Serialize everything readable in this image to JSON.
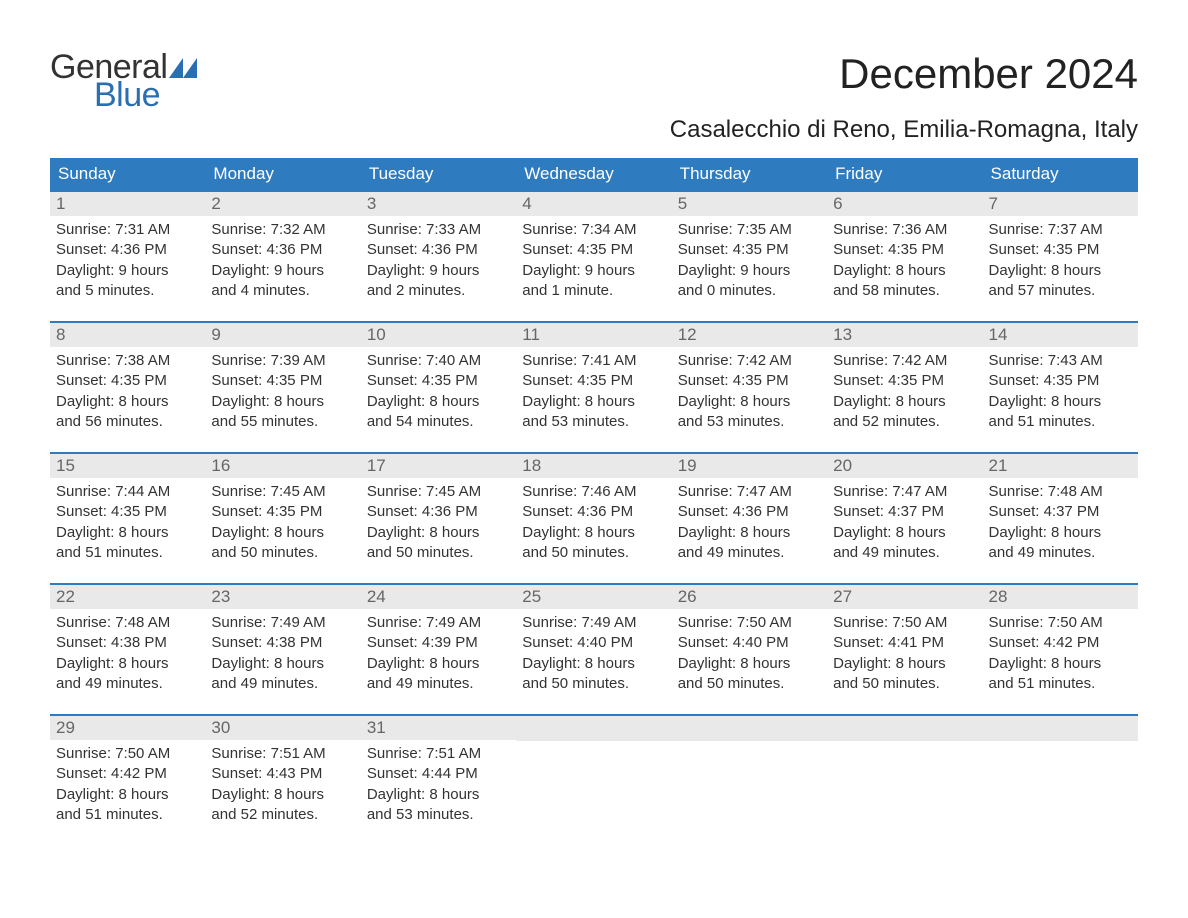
{
  "logo": {
    "general": "General",
    "blue": "Blue",
    "text_color": "#333333",
    "blue_color": "#2a6fb3",
    "triangle_color": "#2a6fb3"
  },
  "title": "December 2024",
  "location": "Casalecchio di Reno, Emilia-Romagna, Italy",
  "colors": {
    "header_bg": "#2f7bbf",
    "header_text": "#ffffff",
    "day_num_bg": "#e9e9e9",
    "day_num_text": "#666666",
    "body_text": "#333333",
    "week_border": "#2f7bbf",
    "page_bg": "#ffffff"
  },
  "typography": {
    "title_fontsize": 42,
    "location_fontsize": 24,
    "weekday_fontsize": 17,
    "daynum_fontsize": 17,
    "body_fontsize": 15,
    "logo_fontsize": 34
  },
  "weekdays": [
    "Sunday",
    "Monday",
    "Tuesday",
    "Wednesday",
    "Thursday",
    "Friday",
    "Saturday"
  ],
  "weeks": [
    [
      {
        "n": "1",
        "sunrise": "Sunrise: 7:31 AM",
        "sunset": "Sunset: 4:36 PM",
        "d1": "Daylight: 9 hours",
        "d2": "and 5 minutes."
      },
      {
        "n": "2",
        "sunrise": "Sunrise: 7:32 AM",
        "sunset": "Sunset: 4:36 PM",
        "d1": "Daylight: 9 hours",
        "d2": "and 4 minutes."
      },
      {
        "n": "3",
        "sunrise": "Sunrise: 7:33 AM",
        "sunset": "Sunset: 4:36 PM",
        "d1": "Daylight: 9 hours",
        "d2": "and 2 minutes."
      },
      {
        "n": "4",
        "sunrise": "Sunrise: 7:34 AM",
        "sunset": "Sunset: 4:35 PM",
        "d1": "Daylight: 9 hours",
        "d2": "and 1 minute."
      },
      {
        "n": "5",
        "sunrise": "Sunrise: 7:35 AM",
        "sunset": "Sunset: 4:35 PM",
        "d1": "Daylight: 9 hours",
        "d2": "and 0 minutes."
      },
      {
        "n": "6",
        "sunrise": "Sunrise: 7:36 AM",
        "sunset": "Sunset: 4:35 PM",
        "d1": "Daylight: 8 hours",
        "d2": "and 58 minutes."
      },
      {
        "n": "7",
        "sunrise": "Sunrise: 7:37 AM",
        "sunset": "Sunset: 4:35 PM",
        "d1": "Daylight: 8 hours",
        "d2": "and 57 minutes."
      }
    ],
    [
      {
        "n": "8",
        "sunrise": "Sunrise: 7:38 AM",
        "sunset": "Sunset: 4:35 PM",
        "d1": "Daylight: 8 hours",
        "d2": "and 56 minutes."
      },
      {
        "n": "9",
        "sunrise": "Sunrise: 7:39 AM",
        "sunset": "Sunset: 4:35 PM",
        "d1": "Daylight: 8 hours",
        "d2": "and 55 minutes."
      },
      {
        "n": "10",
        "sunrise": "Sunrise: 7:40 AM",
        "sunset": "Sunset: 4:35 PM",
        "d1": "Daylight: 8 hours",
        "d2": "and 54 minutes."
      },
      {
        "n": "11",
        "sunrise": "Sunrise: 7:41 AM",
        "sunset": "Sunset: 4:35 PM",
        "d1": "Daylight: 8 hours",
        "d2": "and 53 minutes."
      },
      {
        "n": "12",
        "sunrise": "Sunrise: 7:42 AM",
        "sunset": "Sunset: 4:35 PM",
        "d1": "Daylight: 8 hours",
        "d2": "and 53 minutes."
      },
      {
        "n": "13",
        "sunrise": "Sunrise: 7:42 AM",
        "sunset": "Sunset: 4:35 PM",
        "d1": "Daylight: 8 hours",
        "d2": "and 52 minutes."
      },
      {
        "n": "14",
        "sunrise": "Sunrise: 7:43 AM",
        "sunset": "Sunset: 4:35 PM",
        "d1": "Daylight: 8 hours",
        "d2": "and 51 minutes."
      }
    ],
    [
      {
        "n": "15",
        "sunrise": "Sunrise: 7:44 AM",
        "sunset": "Sunset: 4:35 PM",
        "d1": "Daylight: 8 hours",
        "d2": "and 51 minutes."
      },
      {
        "n": "16",
        "sunrise": "Sunrise: 7:45 AM",
        "sunset": "Sunset: 4:35 PM",
        "d1": "Daylight: 8 hours",
        "d2": "and 50 minutes."
      },
      {
        "n": "17",
        "sunrise": "Sunrise: 7:45 AM",
        "sunset": "Sunset: 4:36 PM",
        "d1": "Daylight: 8 hours",
        "d2": "and 50 minutes."
      },
      {
        "n": "18",
        "sunrise": "Sunrise: 7:46 AM",
        "sunset": "Sunset: 4:36 PM",
        "d1": "Daylight: 8 hours",
        "d2": "and 50 minutes."
      },
      {
        "n": "19",
        "sunrise": "Sunrise: 7:47 AM",
        "sunset": "Sunset: 4:36 PM",
        "d1": "Daylight: 8 hours",
        "d2": "and 49 minutes."
      },
      {
        "n": "20",
        "sunrise": "Sunrise: 7:47 AM",
        "sunset": "Sunset: 4:37 PM",
        "d1": "Daylight: 8 hours",
        "d2": "and 49 minutes."
      },
      {
        "n": "21",
        "sunrise": "Sunrise: 7:48 AM",
        "sunset": "Sunset: 4:37 PM",
        "d1": "Daylight: 8 hours",
        "d2": "and 49 minutes."
      }
    ],
    [
      {
        "n": "22",
        "sunrise": "Sunrise: 7:48 AM",
        "sunset": "Sunset: 4:38 PM",
        "d1": "Daylight: 8 hours",
        "d2": "and 49 minutes."
      },
      {
        "n": "23",
        "sunrise": "Sunrise: 7:49 AM",
        "sunset": "Sunset: 4:38 PM",
        "d1": "Daylight: 8 hours",
        "d2": "and 49 minutes."
      },
      {
        "n": "24",
        "sunrise": "Sunrise: 7:49 AM",
        "sunset": "Sunset: 4:39 PM",
        "d1": "Daylight: 8 hours",
        "d2": "and 49 minutes."
      },
      {
        "n": "25",
        "sunrise": "Sunrise: 7:49 AM",
        "sunset": "Sunset: 4:40 PM",
        "d1": "Daylight: 8 hours",
        "d2": "and 50 minutes."
      },
      {
        "n": "26",
        "sunrise": "Sunrise: 7:50 AM",
        "sunset": "Sunset: 4:40 PM",
        "d1": "Daylight: 8 hours",
        "d2": "and 50 minutes."
      },
      {
        "n": "27",
        "sunrise": "Sunrise: 7:50 AM",
        "sunset": "Sunset: 4:41 PM",
        "d1": "Daylight: 8 hours",
        "d2": "and 50 minutes."
      },
      {
        "n": "28",
        "sunrise": "Sunrise: 7:50 AM",
        "sunset": "Sunset: 4:42 PM",
        "d1": "Daylight: 8 hours",
        "d2": "and 51 minutes."
      }
    ],
    [
      {
        "n": "29",
        "sunrise": "Sunrise: 7:50 AM",
        "sunset": "Sunset: 4:42 PM",
        "d1": "Daylight: 8 hours",
        "d2": "and 51 minutes."
      },
      {
        "n": "30",
        "sunrise": "Sunrise: 7:51 AM",
        "sunset": "Sunset: 4:43 PM",
        "d1": "Daylight: 8 hours",
        "d2": "and 52 minutes."
      },
      {
        "n": "31",
        "sunrise": "Sunrise: 7:51 AM",
        "sunset": "Sunset: 4:44 PM",
        "d1": "Daylight: 8 hours",
        "d2": "and 53 minutes."
      },
      null,
      null,
      null,
      null
    ]
  ]
}
